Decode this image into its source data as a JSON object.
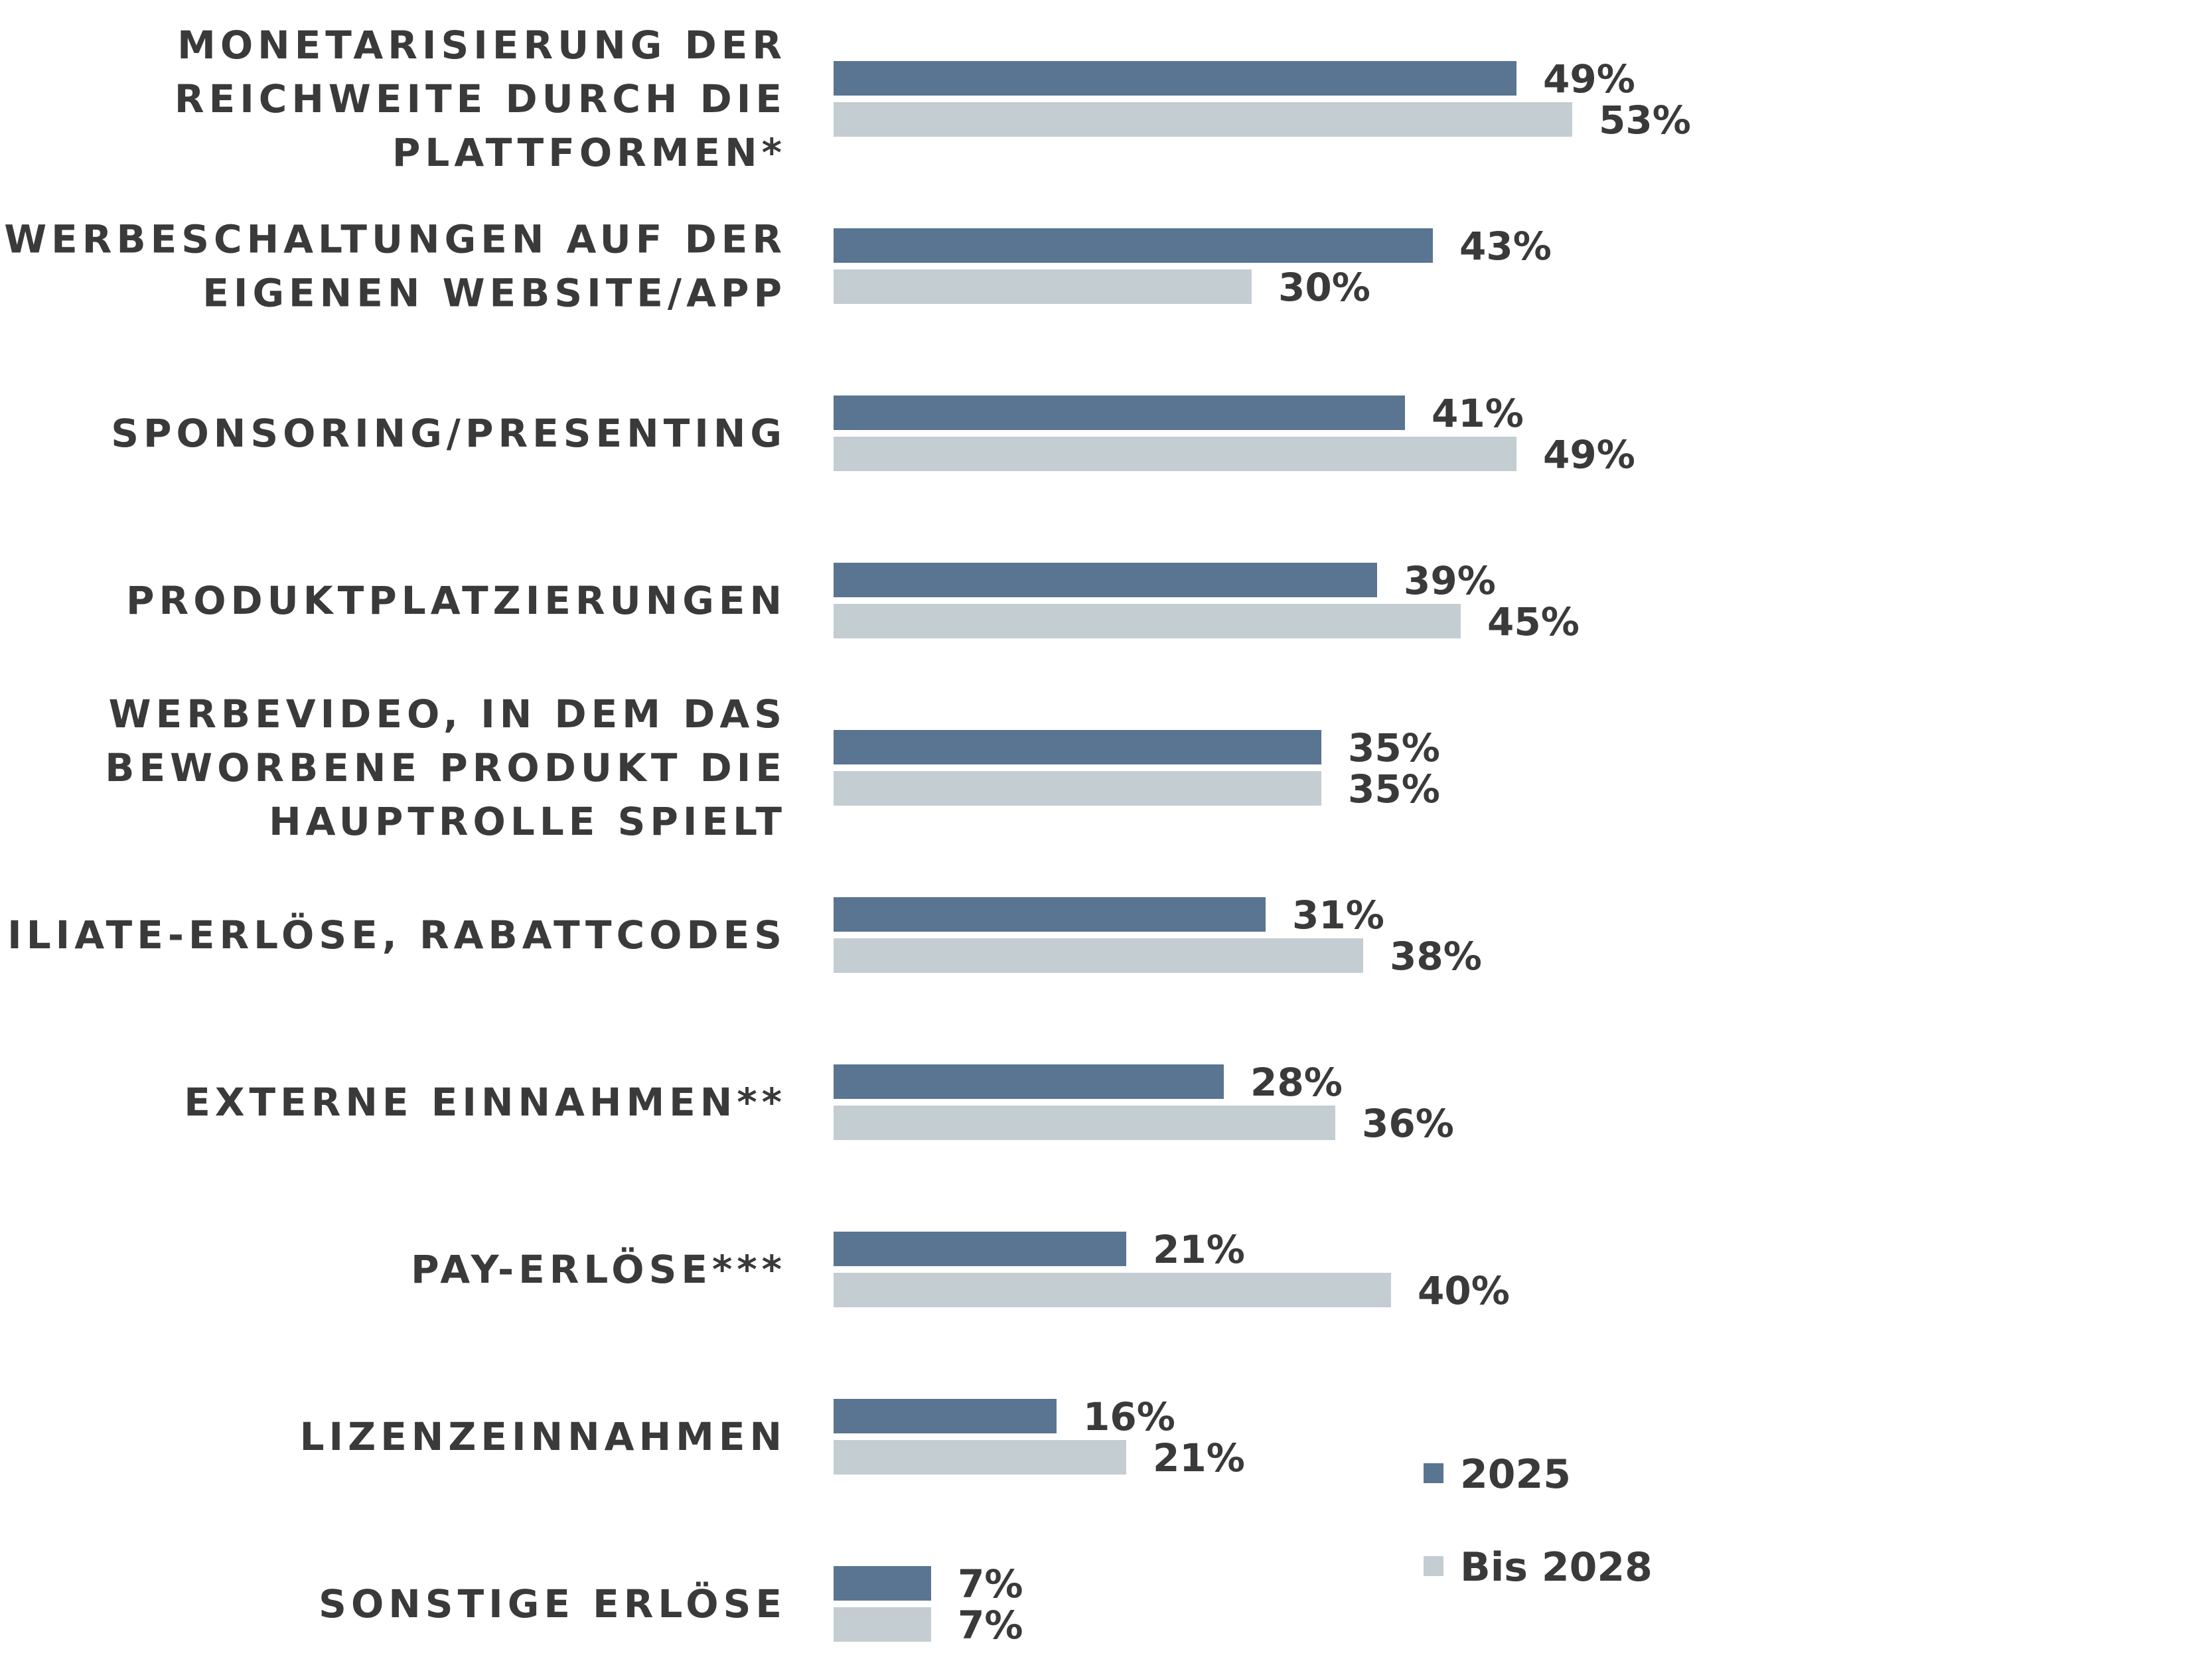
{
  "chart_data": {
    "type": "bar",
    "orientation": "horizontal",
    "categories": [
      [
        "MONETARISIERUNG DER",
        "REICHWEITE DURCH DIE",
        "PLATTFORMEN*"
      ],
      [
        "WERBESCHALTUNGEN AUF DER",
        "EIGENEN WEBSITE/APP"
      ],
      [
        "SPONSORING/PRESENTING"
      ],
      [
        "PRODUKTPLATZIERUNGEN"
      ],
      [
        "WERBEVIDEO, IN DEM DAS",
        "BEWORBENE PRODUKT DIE",
        "HAUPTROLLE SPIELT"
      ],
      [
        "AFFILIATE-ERLÖSE, RABATTCODES"
      ],
      [
        "EXTERNE EINNAHMEN**"
      ],
      [
        "PAY-ERLÖSE***"
      ],
      [
        "LIZENZEINNAHMEN"
      ],
      [
        "SONSTIGE ERLÖSE"
      ]
    ],
    "series": [
      {
        "name": "2025",
        "color": "#5a7591",
        "values": [
          49,
          43,
          41,
          39,
          35,
          31,
          28,
          21,
          16,
          7
        ]
      },
      {
        "name": "Bis 2028",
        "color": "#c4cdd1",
        "values": [
          53,
          30,
          49,
          45,
          35,
          38,
          36,
          40,
          21,
          7
        ]
      }
    ],
    "value_suffix": "%",
    "legend_position": "bottom-right",
    "grid": false
  }
}
